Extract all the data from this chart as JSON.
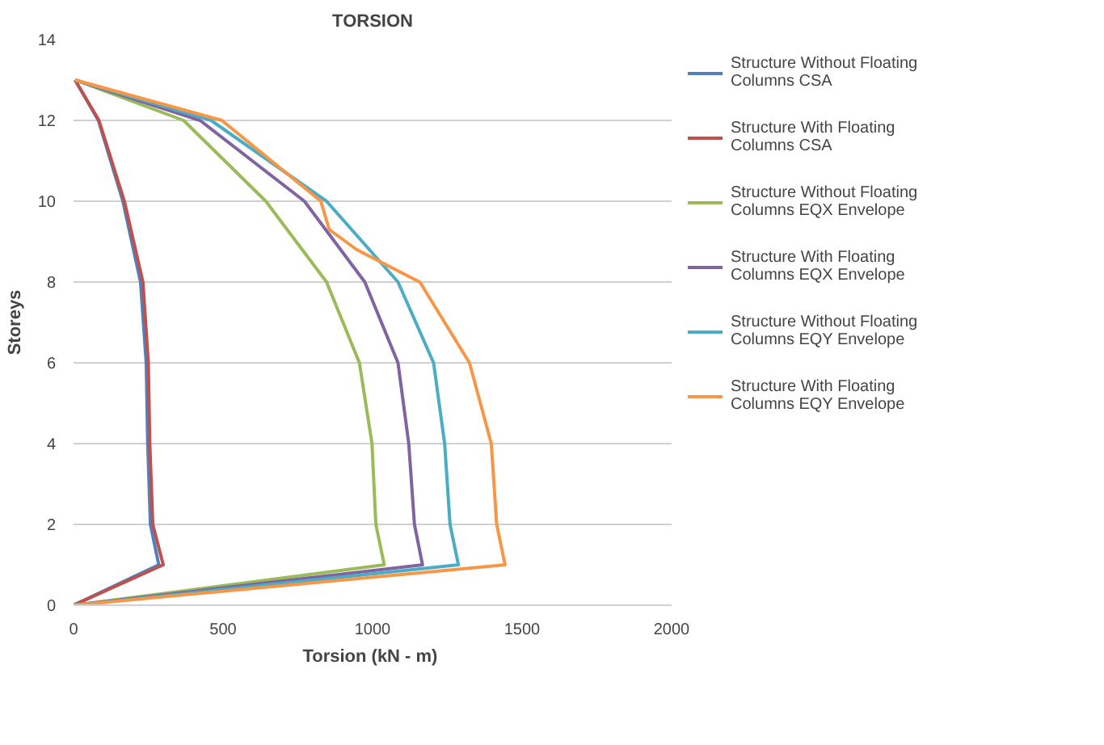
{
  "chart_data": {
    "type": "line",
    "title": "TORSION",
    "xlabel": "Torsion  (kN - m)",
    "ylabel": "Storeys",
    "xlim": [
      0,
      2000
    ],
    "xticks": [
      0,
      500,
      1000,
      1500,
      2000
    ],
    "ylim": [
      0,
      14
    ],
    "yticks": [
      0,
      2,
      4,
      6,
      8,
      10,
      12,
      14
    ],
    "grid": "y",
    "legend": "right",
    "marker": "none",
    "line_style": "solid",
    "series": [
      {
        "name": "Structure Without Floating Columns CSA",
        "color": "#4f81bd",
        "x": [
          0,
          285,
          257,
          248,
          243,
          224,
          165,
          83,
          5
        ],
        "values": [
          0,
          1,
          2,
          4,
          6,
          8,
          10,
          12,
          13
        ]
      },
      {
        "name": "Structure With Floating Columns CSA",
        "color": "#c0504d",
        "x": [
          0,
          300,
          265,
          255,
          250,
          232,
          170,
          85,
          5
        ],
        "values": [
          0,
          1,
          2,
          4,
          6,
          8,
          10,
          12,
          13
        ]
      },
      {
        "name": "Structure Without Floating Columns EQX Envelope",
        "color": "#9bbb59",
        "x": [
          0,
          1039,
          1011,
          998,
          956,
          846,
          643,
          368,
          5
        ],
        "values": [
          0,
          1,
          2,
          4,
          6,
          8,
          10,
          12,
          13
        ]
      },
      {
        "name": "Structure With Floating Columns EQX Envelope",
        "color": "#8064a2",
        "x": [
          0,
          1167,
          1140,
          1121,
          1085,
          974,
          772,
          423,
          5
        ],
        "values": [
          0,
          1,
          2,
          4,
          6,
          8,
          10,
          12,
          13
        ]
      },
      {
        "name": "Structure Without Floating Columns EQY Envelope",
        "color": "#4bacc6",
        "x": [
          0,
          1287,
          1259,
          1241,
          1204,
          1085,
          846,
          460,
          5
        ],
        "values": [
          0,
          1,
          2,
          4,
          6,
          8,
          10,
          12,
          13
        ]
      },
      {
        "name": "Structure With Floating Columns EQY Envelope",
        "color": "#f79646",
        "x": [
          0,
          1443,
          1415,
          1397,
          1324,
          1158,
          947,
          855,
          827,
          496,
          5
        ],
        "values": [
          0,
          1,
          2,
          4,
          6,
          8,
          8.8,
          9.3,
          10,
          12,
          13
        ]
      }
    ]
  }
}
